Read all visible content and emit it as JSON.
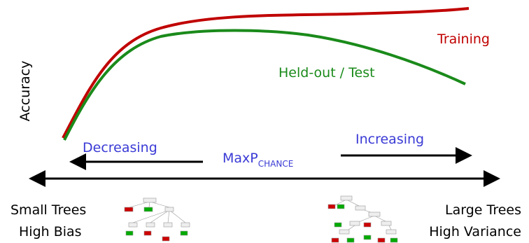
{
  "y_axis_label": "Accuracy",
  "curves": [
    {
      "label": "Training"
    },
    {
      "label": "Held-out / Test"
    }
  ],
  "parameter": {
    "name": "MaxP",
    "subscript": "CHANCE"
  },
  "directions": {
    "left": "Decreasing",
    "right": "Increasing"
  },
  "extremes": {
    "left": {
      "size": "Small Trees",
      "bias": "High Bias"
    },
    "right": {
      "size": "Large Trees",
      "bias": "High Variance"
    }
  }
}
